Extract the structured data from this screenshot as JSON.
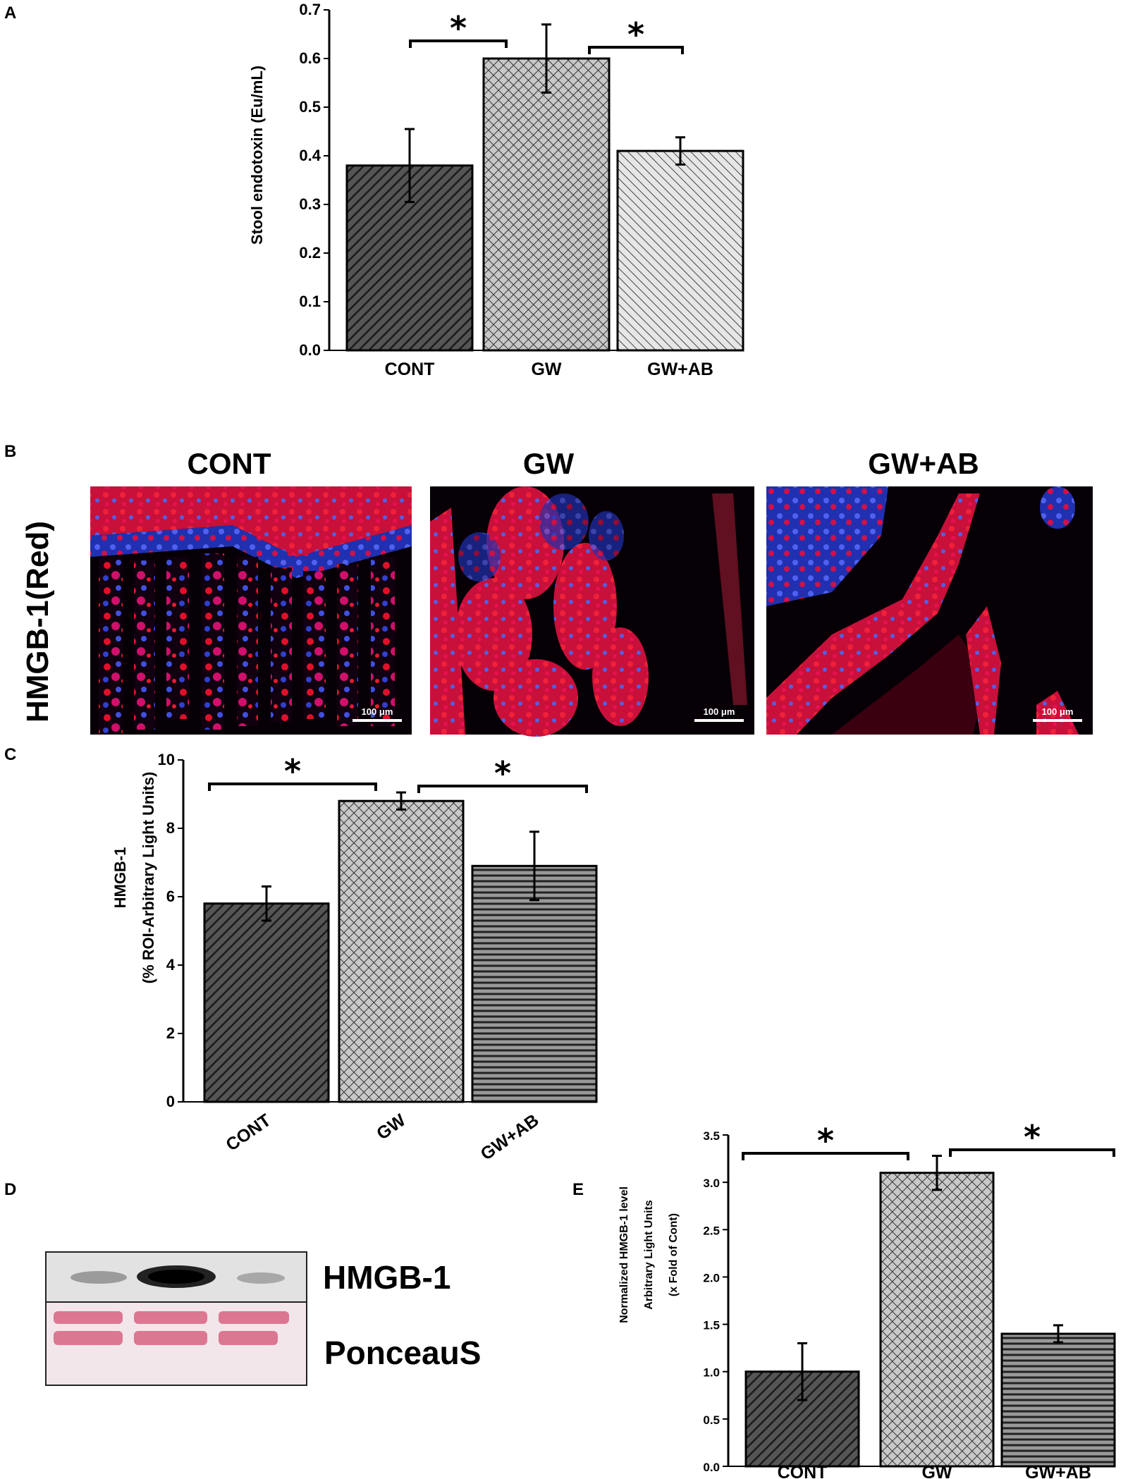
{
  "panel_labels": {
    "a": "A",
    "b": "B",
    "c": "C",
    "d": "D",
    "e": "E"
  },
  "colors": {
    "cont": "#3a3a3a",
    "gw": "#9a9a9a",
    "gwab": "#d8d8d8",
    "gwab_c": "#555555",
    "red": "#e0102a",
    "blue": "#3040e0"
  },
  "chart_data": [
    {
      "panel": "A",
      "type": "bar",
      "title": "",
      "xlabel": "",
      "ylabel": "Stool endotoxin (Eu/mL)",
      "categories": [
        "CONT",
        "GW",
        "GW+AB"
      ],
      "values": [
        0.38,
        0.6,
        0.41
      ],
      "errors": [
        0.075,
        0.07,
        0.028
      ],
      "ylim": [
        0,
        0.7
      ],
      "yticks": [
        "0.0",
        "0.1",
        "0.2",
        "0.3",
        "0.4",
        "0.5",
        "0.6",
        "0.7"
      ],
      "significance": [
        "*",
        "*"
      ],
      "grid": false
    },
    {
      "panel": "C",
      "type": "bar",
      "title": "",
      "xlabel": "",
      "ylabel": [
        "HMGB-1",
        "(% ROI-Arbitrary Light Units)"
      ],
      "categories": [
        "CONT",
        "GW",
        "GW+AB"
      ],
      "values": [
        5.8,
        8.8,
        6.9
      ],
      "errors": [
        0.5,
        0.25,
        1.0
      ],
      "ylim": [
        0,
        10
      ],
      "yticks": [
        "0",
        "2",
        "4",
        "6",
        "8",
        "10"
      ],
      "significance": [
        "*",
        "*"
      ],
      "grid": false
    },
    {
      "panel": "E",
      "type": "bar",
      "title": "",
      "xlabel": "",
      "ylabel": [
        "Normalized HMGB-1 level",
        "Arbitrary Light Units",
        "(x Fold of Cont)"
      ],
      "categories": [
        "CONT",
        "GW",
        "GW+AB"
      ],
      "values": [
        1.0,
        3.1,
        1.4
      ],
      "errors": [
        0.3,
        0.18,
        0.09
      ],
      "ylim": [
        0,
        3.5
      ],
      "yticks": [
        "0.0",
        "0.5",
        "1.0",
        "1.5",
        "2.0",
        "2.5",
        "3.0",
        "3.5"
      ],
      "significance": [
        "*",
        "*"
      ],
      "grid": false
    }
  ],
  "micrographs": {
    "stain_label": "HMGB-1(Red)",
    "titles": [
      "CONT",
      "GW",
      "GW+AB"
    ],
    "scale_bar": "100 μm"
  },
  "blot": {
    "band_label": "HMGB-1",
    "loading_label": "PonceauS"
  }
}
